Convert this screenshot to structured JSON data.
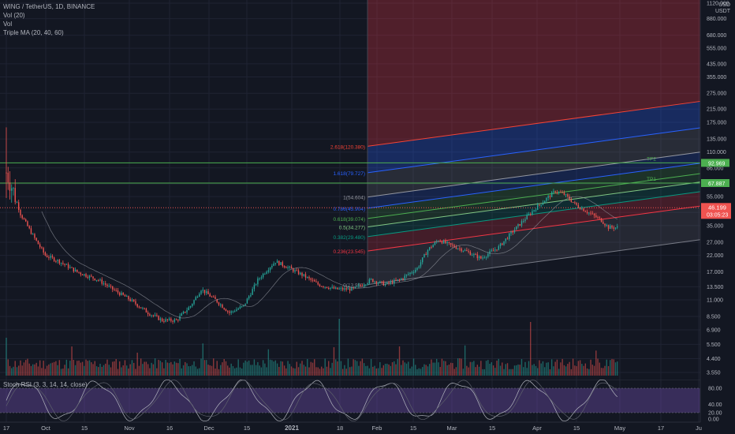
{
  "legend": {
    "symbol_line": "WING / TetherUS, 1D, BINANCE",
    "vol_line": "Vol (20)",
    "vol2_line": "Vol",
    "ma_line": "Triple MA (20, 40, 60)"
  },
  "stoch": {
    "label": "Stoch RSI (3, 3, 14, 14, close)"
  },
  "currency": {
    "line1": "USD",
    "line2": "USDT"
  },
  "colors": {
    "background": "#131722",
    "up": "#26a69a",
    "down": "#ef5350",
    "price_tag": "#ef5350",
    "tp_tag": "#4caf50",
    "stoch_band": "#7e57c2"
  },
  "chart_data": {
    "type": "candlestick",
    "y_scale": "log",
    "price_axis_labels": [
      "1120.000",
      "880.000",
      "680.000",
      "555.000",
      "435.000",
      "355.000",
      "275.000",
      "215.000",
      "175.000",
      "135.000",
      "110.000",
      "86.000",
      "67.000",
      "55.000",
      "43.000",
      "35.000",
      "27.000",
      "22.000",
      "17.000",
      "13.500",
      "11.000",
      "8.500",
      "6.900",
      "5.500",
      "4.400",
      "3.550"
    ],
    "price_axis_values": [
      1120,
      880,
      680,
      555,
      435,
      355,
      275,
      215,
      175,
      135,
      110,
      86,
      67,
      55,
      43,
      35,
      27,
      22,
      17,
      13.5,
      11,
      8.5,
      6.9,
      5.5,
      4.4,
      3.55
    ],
    "time_labels": [
      "17",
      "Oct",
      "15",
      "Nov",
      "16",
      "Dec",
      "15",
      "2021",
      "18",
      "Feb",
      "15",
      "Mar",
      "15",
      "Apr",
      "15",
      "May",
      "17",
      "Ju"
    ],
    "time_label_bold": "2021",
    "stoch_axis_labels": [
      "80.00",
      "40.00",
      "20.00",
      "0.00"
    ],
    "fib_levels": [
      {
        "label": "2.618(120.380)",
        "value": 120.38
      },
      {
        "label": "1.618(79.727)",
        "value": 79.727
      },
      {
        "label": "1(54.604)",
        "value": 54.604
      },
      {
        "label": "0.786(45.904)",
        "value": 45.904
      },
      {
        "label": "0.618(39.074)",
        "value": 39.074
      },
      {
        "label": "0.5(34.277)",
        "value": 34.277
      },
      {
        "label": "0.382(29.480)",
        "value": 29.48
      },
      {
        "label": "0.236(23.545)",
        "value": 23.545
      },
      {
        "label": "0(13.951)",
        "value": 13.951
      }
    ],
    "targets": [
      {
        "label": "TP2",
        "value": 92.969,
        "tag": "92.969"
      },
      {
        "label": "TP1",
        "value": 67.887,
        "tag": "67.887"
      }
    ],
    "last_price": {
      "value": 46.199,
      "tag": "46.199",
      "countdown": "03:05:23"
    }
  }
}
